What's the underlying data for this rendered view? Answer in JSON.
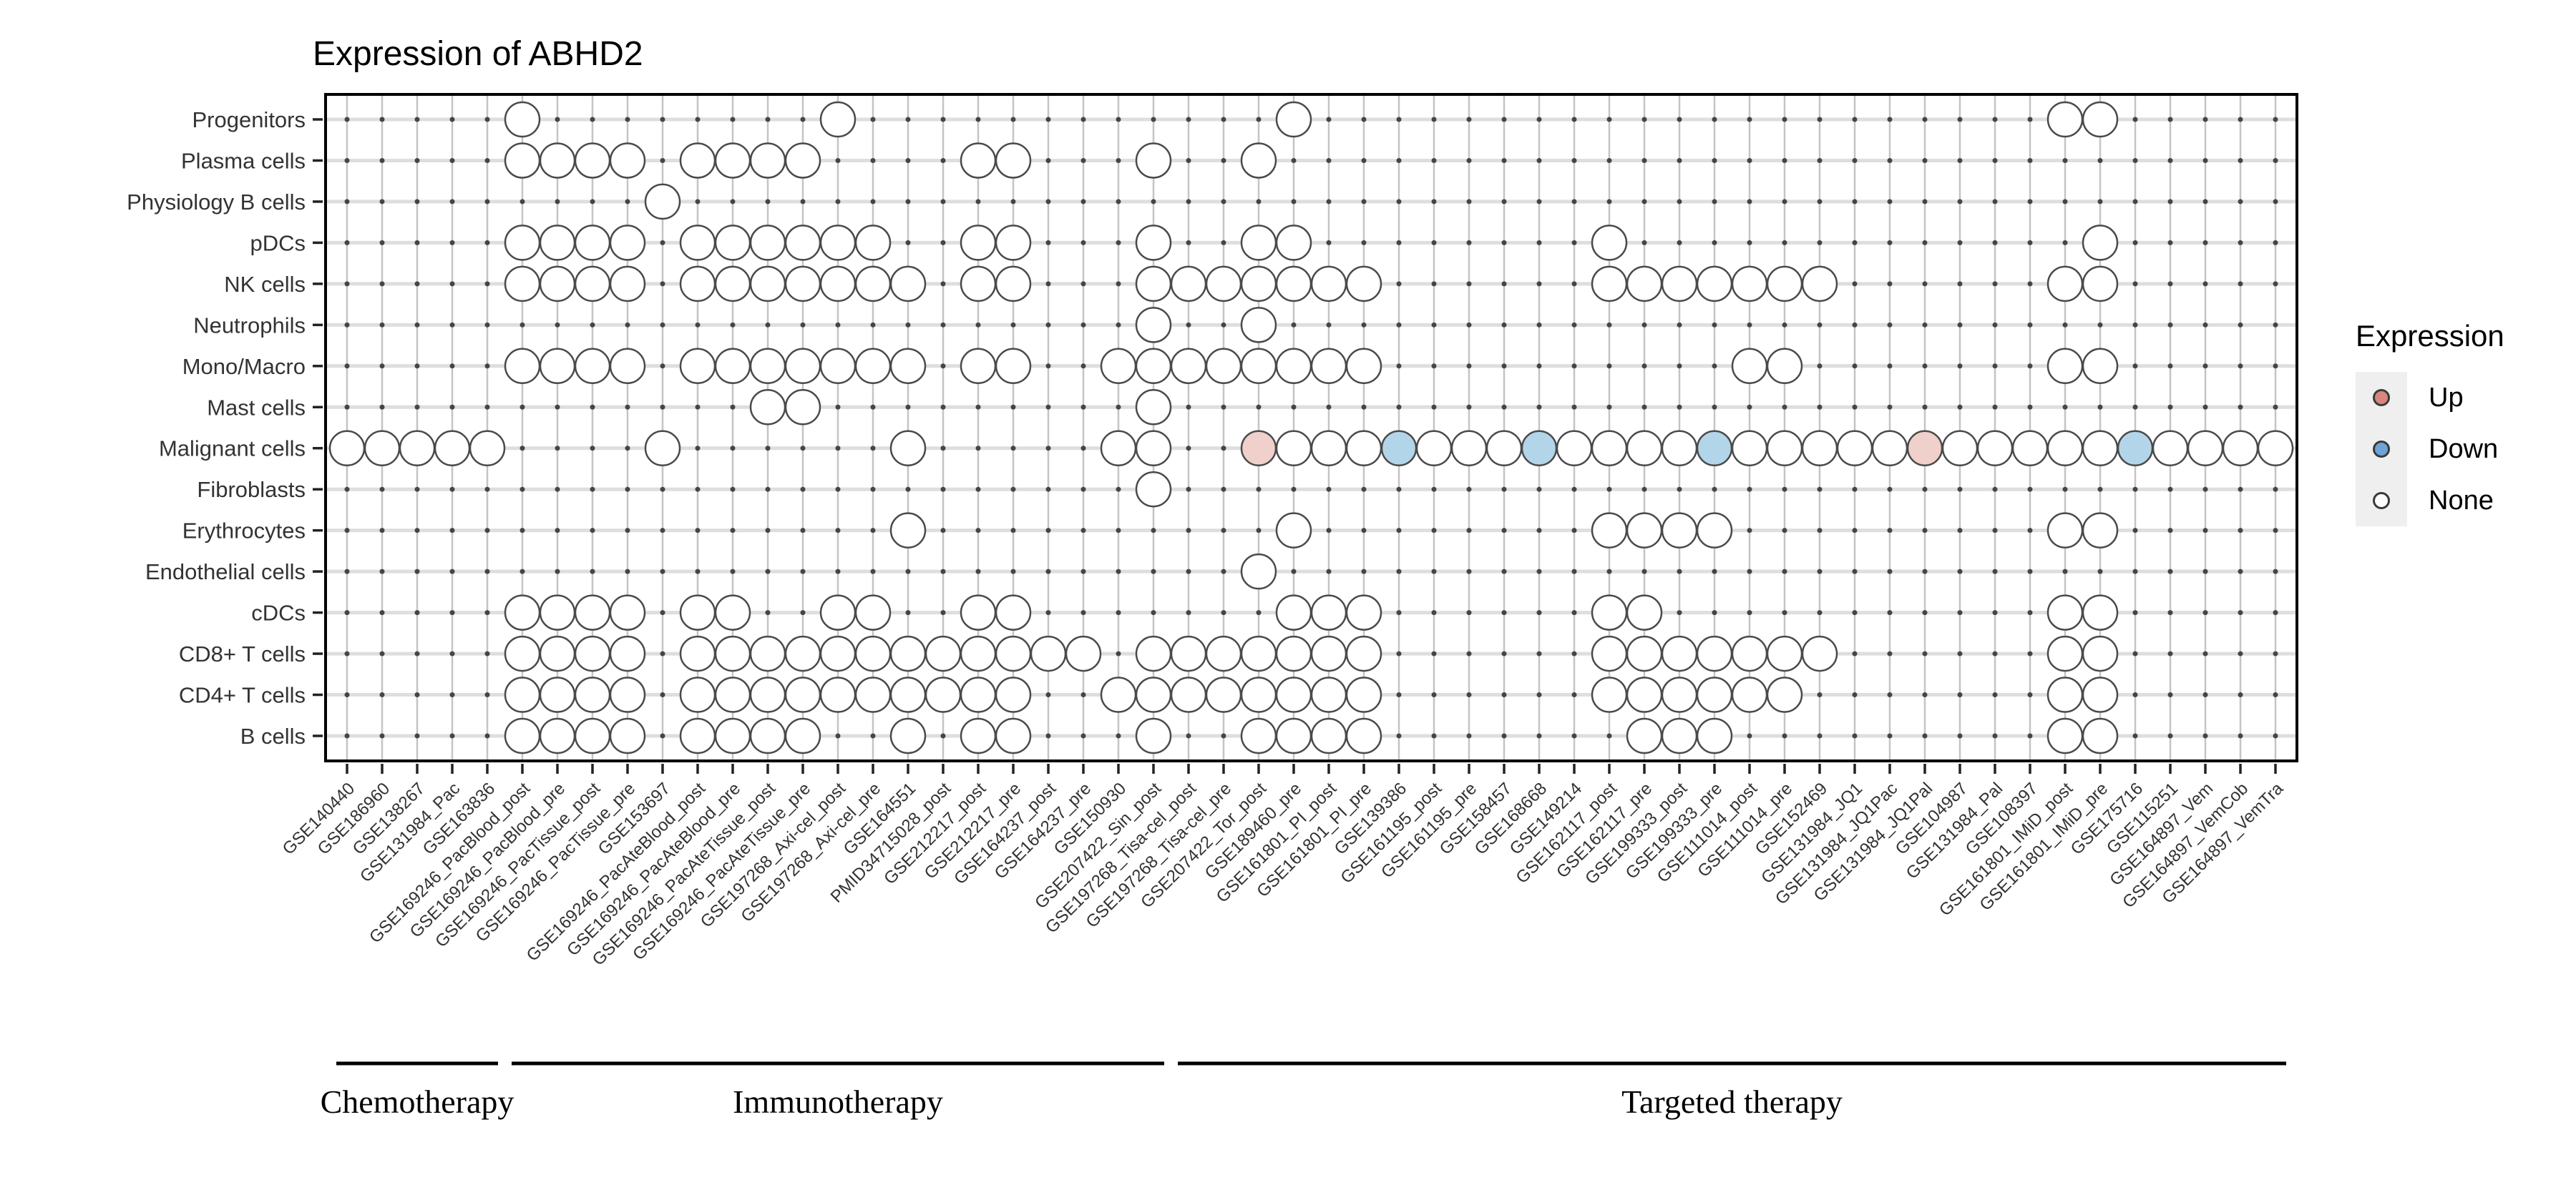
{
  "title": "Expression of ABHD2",
  "chart_data": {
    "type": "heatmap",
    "subtype": "dot-matrix",
    "title": "Expression of ABHD2",
    "legend": {
      "title": "Expression",
      "position": "right",
      "items": [
        {
          "label": "Up",
          "key": "up"
        },
        {
          "label": "Down",
          "key": "down"
        },
        {
          "label": "None",
          "key": "none"
        }
      ]
    },
    "rows": [
      "Progenitors",
      "Plasma cells",
      "Physiology B cells",
      "pDCs",
      "NK cells",
      "Neutrophils",
      "Mono/Macro",
      "Mast cells",
      "Malignant cells",
      "Fibroblasts",
      "Erythrocytes",
      "Endothelial cells",
      "cDCs",
      "CD8+ T cells",
      "CD4+ T cells",
      "B cells"
    ],
    "columns": [
      "GSE140440",
      "GSE186960",
      "GSE138267",
      "GSE131984_Pac",
      "GSE163836",
      "GSE169246_PacBlood_post",
      "GSE169246_PacBlood_pre",
      "GSE169246_PacTissue_post",
      "GSE169246_PacTissue_pre",
      "GSE153697",
      "GSE169246_PacAteBlood_post",
      "GSE169246_PacAteBlood_pre",
      "GSE169246_PacAteTissue_post",
      "GSE169246_PacAteTissue_pre",
      "GSE197268_Axi-cel_post",
      "GSE197268_Axi-cel_pre",
      "GSE164551",
      "PMID34715028_post",
      "GSE212217_post",
      "GSE212217_pre",
      "GSE164237_post",
      "GSE164237_pre",
      "GSE150930",
      "GSE207422_Sin_post",
      "GSE197268_Tisa-cel_post",
      "GSE197268_Tisa-cel_pre",
      "GSE207422_Tor_post",
      "GSE189460_pre",
      "GSE161801_PI_post",
      "GSE161801_PI_pre",
      "GSE139386",
      "GSE161195_post",
      "GSE161195_pre",
      "GSE158457",
      "GSE168668",
      "GSE149214",
      "GSE162117_post",
      "GSE162117_pre",
      "GSE199333_post",
      "GSE199333_pre",
      "GSE111014_post",
      "GSE111014_pre",
      "GSE152469",
      "GSE131984_JQ1",
      "GSE131984_JQ1Pac",
      "GSE131984_JQ1Pal",
      "GSE104987",
      "GSE131984_Pal",
      "GSE108397",
      "GSE161801_IMiD_post",
      "GSE161801_IMiD_pre",
      "GSE175716",
      "GSE115251",
      "GSE164897_Vem",
      "GSE164897_VemCob",
      "GSE164897_VemTra"
    ],
    "column_groups": [
      {
        "label": "Chemotherapy",
        "start": 1,
        "end": 5
      },
      {
        "label": "Immunotherapy",
        "start": 6,
        "end": 24
      },
      {
        "label": "Targeted therapy",
        "start": 25,
        "end": 56
      }
    ],
    "cells": [
      {
        "row": "Progenitors",
        "none": [
          6,
          15,
          28,
          50,
          51
        ],
        "up": [],
        "down": []
      },
      {
        "row": "Plasma cells",
        "none": [
          6,
          7,
          8,
          9,
          11,
          12,
          13,
          14,
          19,
          20,
          24,
          27
        ],
        "up": [],
        "down": []
      },
      {
        "row": "Physiology B cells",
        "none": [
          10
        ],
        "up": [],
        "down": []
      },
      {
        "row": "pDCs",
        "none": [
          6,
          7,
          8,
          9,
          11,
          12,
          13,
          14,
          15,
          16,
          19,
          20,
          24,
          27,
          28,
          37,
          51
        ],
        "up": [],
        "down": []
      },
      {
        "row": "NK cells",
        "none": [
          6,
          7,
          8,
          9,
          11,
          12,
          13,
          14,
          15,
          16,
          17,
          19,
          20,
          24,
          25,
          26,
          27,
          28,
          29,
          30,
          37,
          38,
          39,
          40,
          41,
          42,
          43,
          50,
          51
        ],
        "up": [],
        "down": []
      },
      {
        "row": "Neutrophils",
        "none": [
          24,
          27
        ],
        "up": [],
        "down": []
      },
      {
        "row": "Mono/Macro",
        "none": [
          6,
          7,
          8,
          9,
          11,
          12,
          13,
          14,
          15,
          16,
          17,
          19,
          20,
          23,
          24,
          25,
          26,
          27,
          28,
          29,
          30,
          41,
          42,
          50,
          51
        ],
        "up": [],
        "down": []
      },
      {
        "row": "Mast cells",
        "none": [
          13,
          14,
          24
        ],
        "up": [],
        "down": []
      },
      {
        "row": "Malignant cells",
        "none": [
          1,
          2,
          3,
          4,
          5,
          10,
          17,
          23,
          24,
          28,
          29,
          30,
          32,
          33,
          34,
          36,
          37,
          38,
          39,
          41,
          42,
          43,
          44,
          45,
          47,
          48,
          49,
          50,
          51,
          53,
          54,
          55,
          56
        ],
        "up": [
          27,
          46
        ],
        "down": [
          31,
          35,
          40,
          52
        ]
      },
      {
        "row": "Fibroblasts",
        "none": [
          24
        ],
        "up": [],
        "down": []
      },
      {
        "row": "Erythrocytes",
        "none": [
          17,
          28,
          37,
          38,
          39,
          40,
          50,
          51
        ],
        "up": [],
        "down": []
      },
      {
        "row": "Endothelial cells",
        "none": [
          27
        ],
        "up": [],
        "down": []
      },
      {
        "row": "cDCs",
        "none": [
          6,
          7,
          8,
          9,
          11,
          12,
          15,
          16,
          19,
          20,
          28,
          29,
          30,
          37,
          38,
          50,
          51
        ],
        "up": [],
        "down": []
      },
      {
        "row": "CD8+ T cells",
        "none": [
          6,
          7,
          8,
          9,
          11,
          12,
          13,
          14,
          15,
          16,
          17,
          18,
          19,
          20,
          21,
          22,
          24,
          25,
          26,
          27,
          28,
          29,
          30,
          37,
          38,
          39,
          40,
          41,
          42,
          43,
          50,
          51
        ],
        "up": [],
        "down": []
      },
      {
        "row": "CD4+ T cells",
        "none": [
          6,
          7,
          8,
          9,
          11,
          12,
          13,
          14,
          15,
          16,
          17,
          18,
          19,
          20,
          23,
          24,
          25,
          26,
          27,
          28,
          29,
          30,
          37,
          38,
          39,
          40,
          41,
          42,
          50,
          51
        ],
        "up": [],
        "down": []
      },
      {
        "row": "B cells",
        "none": [
          6,
          7,
          8,
          9,
          11,
          12,
          13,
          14,
          17,
          19,
          20,
          24,
          27,
          28,
          29,
          30,
          38,
          39,
          40,
          50,
          51
        ],
        "up": [],
        "down": []
      }
    ],
    "colors": {
      "up_fill": "#F0D0CA",
      "down_fill": "#B3D5E9",
      "none_fill": "#FFFFFF",
      "circle_stroke": "#4A4A4A",
      "legend_up": "#D8867E",
      "legend_down": "#6CA5D5",
      "legend_none": "#FFFFFF",
      "grid_vertical": "#C4C4C4",
      "grid_horizontal": "#DEDEDE",
      "intersection_dot": "#454545",
      "axis_text": "#333333",
      "border": "#000000"
    },
    "axis": {
      "x_label_angle": -45,
      "grid": true
    }
  }
}
